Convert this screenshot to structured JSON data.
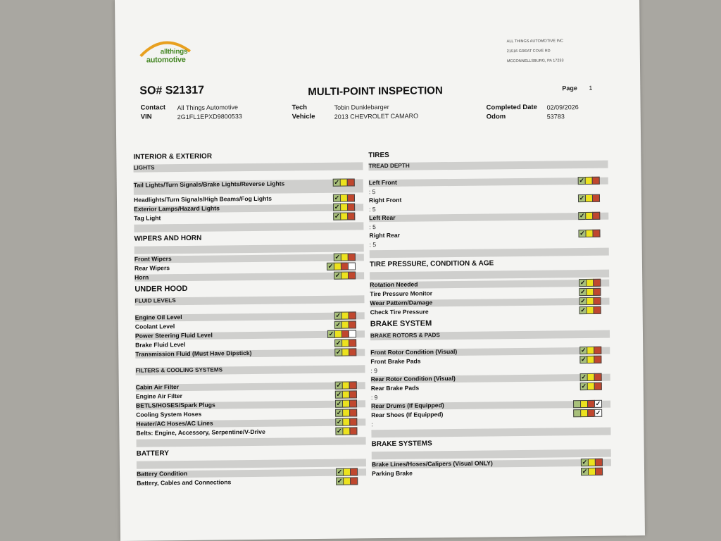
{
  "colors": {
    "green": "#a8c07a",
    "yellow": "#ece21e",
    "red": "#c0472e",
    "paper": "#f4f4f2"
  },
  "logo": {
    "line1": "allthings",
    "line2": "automotive"
  },
  "company": {
    "name": "ALL THINGS AUTOMOTIVE INC",
    "street": "21516 GREAT COVE RD",
    "city": "MCCONNELLSBURG, PA  17233"
  },
  "header": {
    "so": "SO# S21317",
    "title": "MULTI-POINT INSPECTION",
    "page_label": "Page",
    "page_value": "1",
    "contact_label": "Contact",
    "contact": "All Things Automotive",
    "vin_label": "VIN",
    "vin": "2G1FL1EPXD9800533",
    "tech_label": "Tech",
    "tech": "Tobin Dunklebarger",
    "vehicle_label": "Vehicle",
    "vehicle": "2013 CHEVROLET CAMARO",
    "date_label": "Completed Date",
    "date": "02/09/2026",
    "odom_label": "Odom",
    "odom": "53783"
  },
  "left": [
    {
      "t": "title",
      "text": "INTERIOR & EXTERIOR"
    },
    {
      "t": "bar",
      "text": "LIGHTS"
    },
    {
      "t": "gap"
    },
    {
      "t": "item",
      "text": "Tail Lights/Turn Signals/Brake Lights/Reverse Lights",
      "status": "green",
      "two": true
    },
    {
      "t": "item",
      "text": "Headlights/Turn Signals/High Beams/Fog Lights",
      "status": "green"
    },
    {
      "t": "item",
      "text": "Exterior Lamps/Hazard Lights",
      "status": "green"
    },
    {
      "t": "item",
      "text": "Tag Light",
      "status": "green"
    },
    {
      "t": "bar",
      "text": ""
    },
    {
      "t": "title",
      "text": "WIPERS AND HORN"
    },
    {
      "t": "bar",
      "text": ""
    },
    {
      "t": "item",
      "text": "Front Wipers",
      "status": "green"
    },
    {
      "t": "item",
      "text": "Rear Wipers",
      "status": "green",
      "na_box": true
    },
    {
      "t": "item",
      "text": "Horn",
      "status": "green"
    },
    {
      "t": "big",
      "text": "UNDER HOOD"
    },
    {
      "t": "bar",
      "text": "FLUID LEVELS"
    },
    {
      "t": "gap"
    },
    {
      "t": "item",
      "text": "Engine Oil Level",
      "status": "green"
    },
    {
      "t": "item",
      "text": "Coolant Level",
      "status": "green"
    },
    {
      "t": "item",
      "text": "Power Steering Fluid Level",
      "status": "green",
      "na_box": true
    },
    {
      "t": "item",
      "text": "Brake Fluid Level",
      "status": "green"
    },
    {
      "t": "item",
      "text": "Transmission Fluid (Must Have Dipstick)",
      "status": "green"
    },
    {
      "t": "gap"
    },
    {
      "t": "bar",
      "text": "FILTERS & COOLING SYSTEMS"
    },
    {
      "t": "gap"
    },
    {
      "t": "item",
      "text": "Cabin Air Filter",
      "status": "green"
    },
    {
      "t": "item",
      "text": "Engine Air Filter",
      "status": "green"
    },
    {
      "t": "item",
      "text": "BETLS/HOSES/Spark Plugs",
      "status": "green"
    },
    {
      "t": "item",
      "text": "Cooling System Hoses",
      "status": "green"
    },
    {
      "t": "item",
      "text": "Heater/AC Hoses/AC Lines",
      "status": "green"
    },
    {
      "t": "item",
      "text": "Belts: Engine, Accessory, Serpentine/V-Drive",
      "status": "green"
    },
    {
      "t": "bar",
      "text": ""
    },
    {
      "t": "title",
      "text": "BATTERY"
    },
    {
      "t": "bar",
      "text": ""
    },
    {
      "t": "item",
      "text": "Battery Condition",
      "status": "green"
    },
    {
      "t": "item",
      "text": "Battery, Cables and Connections",
      "status": "green"
    }
  ],
  "right": [
    {
      "t": "title",
      "text": "TIRES"
    },
    {
      "t": "bar",
      "text": "TREAD DEPTH"
    },
    {
      "t": "gap"
    },
    {
      "t": "item",
      "text": "Left Front",
      "status": "green",
      "value": ": 5"
    },
    {
      "t": "item",
      "text": "Right Front",
      "status": "green",
      "value": ": 5"
    },
    {
      "t": "item",
      "text": "Left Rear",
      "status": "green",
      "value": ": 5"
    },
    {
      "t": "item",
      "text": "Right Rear",
      "status": "green",
      "value": ": 5"
    },
    {
      "t": "bar",
      "text": ""
    },
    {
      "t": "title",
      "text": "TIRE PRESSURE, CONDITION & AGE"
    },
    {
      "t": "bar",
      "text": ""
    },
    {
      "t": "item",
      "text": "Rotation Needed",
      "status": "green"
    },
    {
      "t": "item",
      "text": "Tire Pressure Monitor",
      "status": "green"
    },
    {
      "t": "item",
      "text": "Wear Pattern/Damage",
      "status": "green"
    },
    {
      "t": "item",
      "text": "Check Tire Pressure",
      "status": "green"
    },
    {
      "t": "big",
      "text": "BRAKE SYSTEM"
    },
    {
      "t": "bar",
      "text": "BRAKE ROTORS & PADS"
    },
    {
      "t": "gap"
    },
    {
      "t": "item",
      "text": "Front Rotor Condition (Visual)",
      "status": "green"
    },
    {
      "t": "item",
      "text": "Front Brake Pads",
      "status": "green",
      "value": ": 9"
    },
    {
      "t": "item",
      "text": "Rear Rotor Condition (Visual)",
      "status": "green"
    },
    {
      "t": "item",
      "text": "Rear Brake Pads",
      "status": "green",
      "value": ": 9"
    },
    {
      "t": "item",
      "text": "Rear Drums (If Equipped)",
      "status": "na",
      "na_box": true
    },
    {
      "t": "item",
      "text": "Rear Shoes (If Equipped)",
      "status": "na",
      "na_box": true,
      "value": ":"
    },
    {
      "t": "bar",
      "text": ""
    },
    {
      "t": "title",
      "text": "BRAKE SYSTEMS"
    },
    {
      "t": "bar",
      "text": ""
    },
    {
      "t": "item",
      "text": "Brake Lines/Hoses/Calipers (Visual ONLY)",
      "status": "green"
    },
    {
      "t": "item",
      "text": "Parking Brake",
      "status": "green"
    }
  ]
}
